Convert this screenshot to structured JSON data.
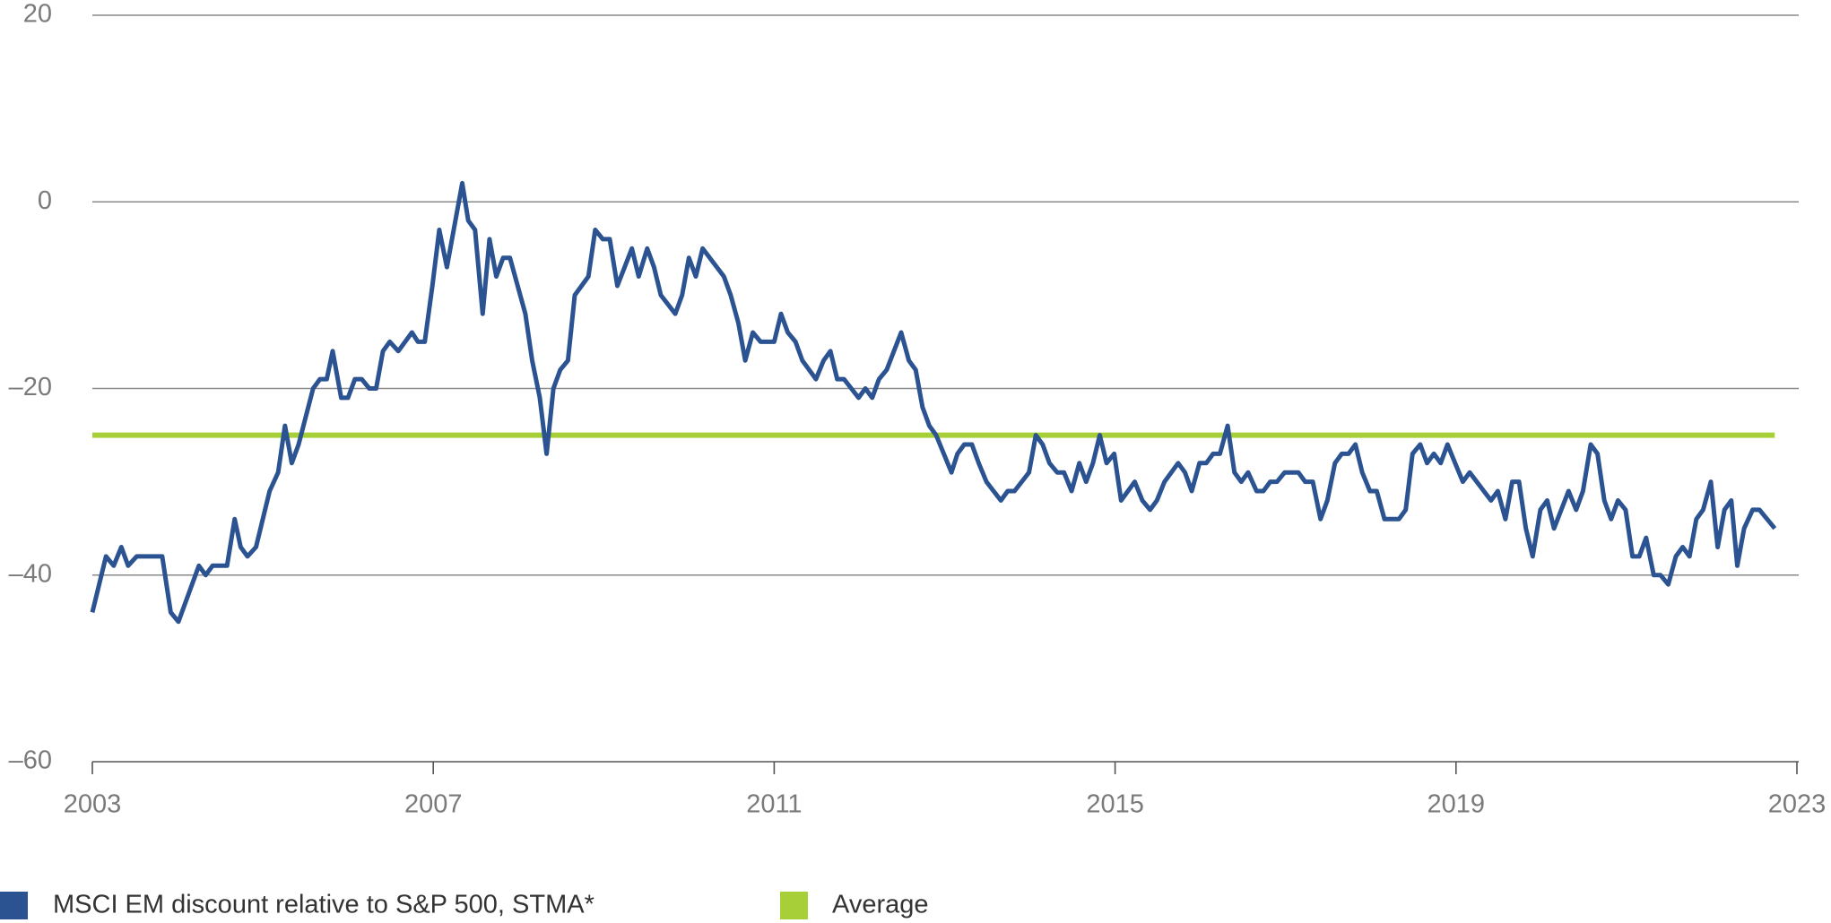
{
  "chart_data": {
    "type": "line",
    "xlim": [
      2003,
      2023
    ],
    "xticks": [
      2003,
      2007,
      2011,
      2015,
      2019,
      2023
    ],
    "ylim": [
      -60,
      20
    ],
    "yticks": [
      20,
      0,
      {
        "value": -20,
        "label": "–20"
      },
      {
        "value": -40,
        "label": "–40"
      },
      {
        "value": -60,
        "label": "–60"
      }
    ],
    "grid": true,
    "x": [
      2003.0,
      2003.16,
      2003.25,
      2003.34,
      2003.42,
      2003.52,
      2003.82,
      2003.92,
      2004.01,
      2004.25,
      2004.33,
      2004.41,
      2004.58,
      2004.67,
      2004.74,
      2004.82,
      2004.92,
      2005.08,
      2005.18,
      2005.26,
      2005.34,
      2005.42,
      2005.59,
      2005.67,
      2005.75,
      2005.82,
      2005.92,
      2006.0,
      2006.08,
      2006.16,
      2006.25,
      2006.33,
      2006.41,
      2006.49,
      2006.59,
      2006.75,
      2006.82,
      2006.9,
      2006.99,
      2007.07,
      2007.16,
      2007.34,
      2007.41,
      2007.49,
      2007.58,
      2007.66,
      2007.74,
      2007.82,
      2007.9,
      2008.08,
      2008.16,
      2008.25,
      2008.33,
      2008.41,
      2008.49,
      2008.58,
      2008.66,
      2008.74,
      2008.82,
      2008.9,
      2008.99,
      2009.07,
      2009.16,
      2009.33,
      2009.41,
      2009.51,
      2009.59,
      2009.67,
      2009.84,
      2009.92,
      2010.0,
      2010.08,
      2010.16,
      2010.41,
      2010.49,
      2010.58,
      2010.66,
      2010.75,
      2010.84,
      2011.0,
      2011.08,
      2011.16,
      2011.25,
      2011.33,
      2011.49,
      2011.58,
      2011.66,
      2011.74,
      2011.82,
      2011.99,
      2012.07,
      2012.15,
      2012.23,
      2012.32,
      2012.49,
      2012.58,
      2012.66,
      2012.74,
      2012.82,
      2012.9,
      2013.08,
      2013.15,
      2013.23,
      2013.32,
      2013.4,
      2013.49,
      2013.66,
      2013.74,
      2013.82,
      2013.99,
      2014.07,
      2014.15,
      2014.23,
      2014.32,
      2014.4,
      2014.49,
      2014.58,
      2014.66,
      2014.74,
      2014.82,
      2014.9,
      2014.99,
      2015.07,
      2015.23,
      2015.32,
      2015.41,
      2015.49,
      2015.58,
      2015.74,
      2015.82,
      2015.9,
      2015.99,
      2016.07,
      2016.15,
      2016.23,
      2016.32,
      2016.4,
      2016.48,
      2016.56,
      2016.66,
      2016.74,
      2016.82,
      2016.9,
      2016.99,
      2017.15,
      2017.23,
      2017.32,
      2017.41,
      2017.49,
      2017.58,
      2017.66,
      2017.74,
      2017.82,
      2017.9,
      2017.99,
      2018.07,
      2018.16,
      2018.33,
      2018.41,
      2018.49,
      2018.58,
      2018.66,
      2018.74,
      2018.82,
      2018.9,
      2018.99,
      2019.08,
      2019.16,
      2019.41,
      2019.49,
      2019.58,
      2019.66,
      2019.74,
      2019.82,
      2019.9,
      2019.99,
      2020.07,
      2020.15,
      2020.32,
      2020.41,
      2020.49,
      2020.58,
      2020.66,
      2020.74,
      2020.82,
      2020.9,
      2020.99,
      2021.07,
      2021.15,
      2021.23,
      2021.32,
      2021.4,
      2021.49,
      2021.58,
      2021.66,
      2021.74,
      2021.82,
      2021.9,
      2021.99,
      2022.07,
      2022.15,
      2022.23,
      2022.3,
      2022.38,
      2022.48,
      2022.56,
      2022.74
    ],
    "series": [
      {
        "name": "MSCI EM discount relative to S&P 500, STMA*",
        "color": "#2c5391",
        "values": [
          -44,
          -38,
          -39,
          -37,
          -39,
          -38,
          -38,
          -44,
          -45,
          -39,
          -40,
          -39,
          -39,
          -34,
          -37,
          -38,
          -37,
          -31,
          -29,
          -24,
          -28,
          -26,
          -20,
          -19,
          -19,
          -16,
          -21,
          -21,
          -19,
          -19,
          -20,
          -20,
          -16,
          -15,
          -16,
          -14,
          -15,
          -15,
          -9,
          -3,
          -7,
          2,
          -2,
          -3,
          -12,
          -4,
          -8,
          -6,
          -6,
          -12,
          -17,
          -21,
          -27,
          -20,
          -18,
          -17,
          -10,
          -9,
          -8,
          -3,
          -4,
          -4,
          -9,
          -5,
          -8,
          -5,
          -7,
          -10,
          -12,
          -10,
          -6,
          -8,
          -5,
          -8,
          -10,
          -13,
          -17,
          -14,
          -15,
          -15,
          -12,
          -14,
          -15,
          -17,
          -19,
          -17,
          -16,
          -19,
          -19,
          -21,
          -20,
          -21,
          -19,
          -18,
          -14,
          -17,
          -18,
          -22,
          -24,
          -25,
          -29,
          -27,
          -26,
          -26,
          -28,
          -30,
          -32,
          -31,
          -31,
          -29,
          -25,
          -26,
          -28,
          -29,
          -29,
          -31,
          -28,
          -30,
          -28,
          -25,
          -28,
          -27,
          -32,
          -30,
          -32,
          -33,
          -32,
          -30,
          -28,
          -29,
          -31,
          -28,
          -28,
          -27,
          -27,
          -24,
          -29,
          -30,
          -29,
          -31,
          -31,
          -30,
          -30,
          -29,
          -29,
          -30,
          -30,
          -34,
          -32,
          -28,
          -27,
          -27,
          -26,
          -29,
          -31,
          -31,
          -34,
          -34,
          -33,
          -27,
          -26,
          -28,
          -27,
          -28,
          -26,
          -28,
          -30,
          -29,
          -32,
          -31,
          -34,
          -30,
          -30,
          -35,
          -38,
          -33,
          -32,
          -35,
          -31,
          -33,
          -31,
          -26,
          -27,
          -32,
          -34,
          -32,
          -33,
          -38,
          -38,
          -36,
          -40,
          -40,
          -41,
          -38,
          -37,
          -38,
          -34,
          -33,
          -30,
          -37,
          -33,
          -32,
          -39,
          -35,
          -33,
          -33,
          -35
        ]
      }
    ],
    "average": {
      "name": "Average",
      "value": -25,
      "color": "#a6cf38"
    }
  }
}
